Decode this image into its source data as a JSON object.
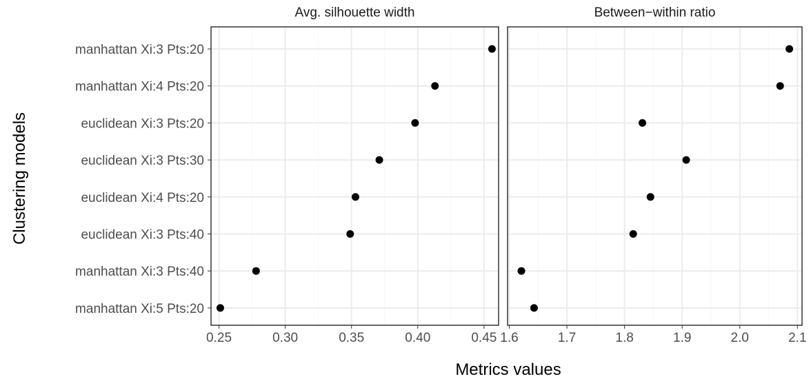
{
  "chart_data": {
    "type": "scatter",
    "xlabel": "Metrics values",
    "ylabel": "Clustering models",
    "grid": true,
    "categories": [
      "manhattan Xi:3 Pts:20",
      "manhattan Xi:4 Pts:20",
      "euclidean Xi:3 Pts:20",
      "euclidean Xi:3 Pts:30",
      "euclidean Xi:4 Pts:20",
      "euclidean Xi:3 Pts:40",
      "manhattan Xi:3 Pts:40",
      "manhattan Xi:5 Pts:20"
    ],
    "facets": [
      {
        "title": "Avg. silhouette width",
        "xlim": [
          0.244,
          0.461
        ],
        "ticks": [
          0.25,
          0.3,
          0.35,
          0.4,
          0.45
        ],
        "tick_labels": [
          "0.25",
          "0.30",
          "0.35",
          "0.40",
          "0.45"
        ],
        "values": [
          0.456,
          0.413,
          0.398,
          0.371,
          0.353,
          0.349,
          0.278,
          0.251
        ]
      },
      {
        "title": "Between−within ratio",
        "xlim": [
          1.597,
          2.108
        ],
        "ticks": [
          1.6,
          1.7,
          1.8,
          1.9,
          2.0,
          2.1
        ],
        "tick_labels": [
          "1.6",
          "1.7",
          "1.8",
          "1.9",
          "2.0",
          "2.1"
        ],
        "values": [
          2.086,
          2.07,
          1.831,
          1.907,
          1.845,
          1.815,
          1.621,
          1.643
        ]
      }
    ]
  },
  "colors": {
    "point": "#000000",
    "panel_border": "#333333",
    "grid_major": "#ebebeb",
    "grid_minor": "#f7f7f7",
    "strip_text": "#1a1a1a",
    "tick_text": "#4d4d4d"
  }
}
